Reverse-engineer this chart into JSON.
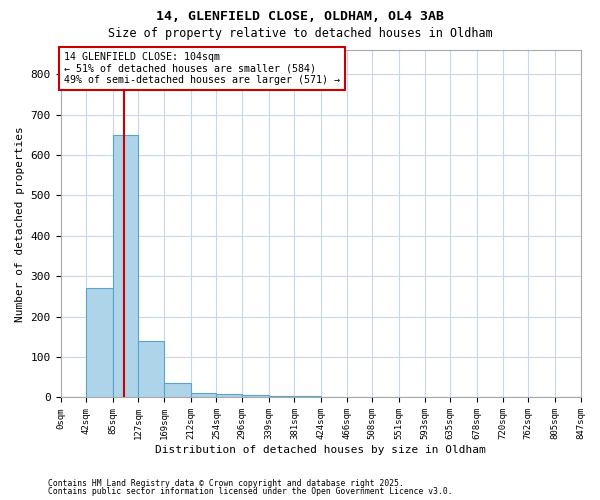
{
  "title1": "14, GLENFIELD CLOSE, OLDHAM, OL4 3AB",
  "title2": "Size of property relative to detached houses in Oldham",
  "xlabel": "Distribution of detached houses by size in Oldham",
  "ylabel": "Number of detached properties",
  "bar_edges": [
    0,
    42,
    85,
    127,
    169,
    212,
    254,
    296,
    339,
    381,
    424,
    466,
    508,
    551,
    593,
    635,
    678,
    720,
    762,
    805,
    847
  ],
  "bar_heights": [
    0,
    270,
    650,
    140,
    35,
    12,
    8,
    5,
    4,
    3,
    2,
    2,
    1,
    1,
    1,
    1,
    1,
    0,
    0,
    0
  ],
  "bar_color": "#aed4ea",
  "bar_edge_color": "#5ba3c9",
  "property_line_x": 104,
  "property_line_color": "#cc0000",
  "annotation_text": "14 GLENFIELD CLOSE: 104sqm\n← 51% of detached houses are smaller (584)\n49% of semi-detached houses are larger (571) →",
  "annotation_box_color": "#cc0000",
  "ylim": [
    0,
    860
  ],
  "yticks": [
    0,
    100,
    200,
    300,
    400,
    500,
    600,
    700,
    800
  ],
  "background_color": "#ffffff",
  "grid_color": "#c8d8e8",
  "footer1": "Contains HM Land Registry data © Crown copyright and database right 2025.",
  "footer2": "Contains public sector information licensed under the Open Government Licence v3.0."
}
